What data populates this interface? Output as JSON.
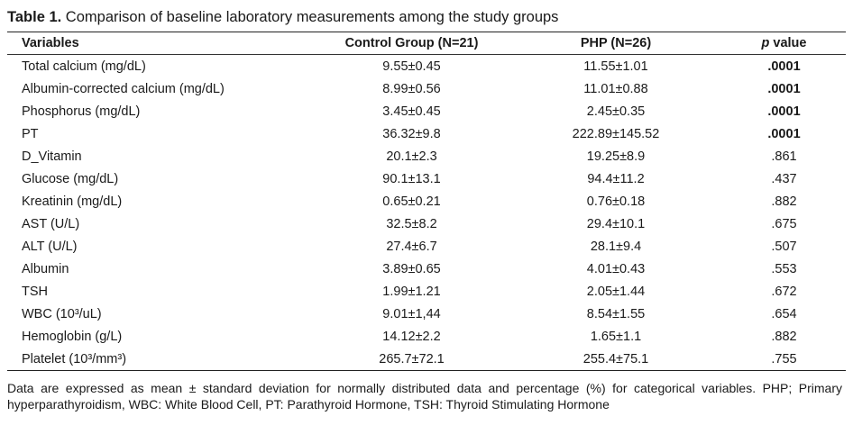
{
  "caption": {
    "lead": "Table 1.",
    "text": " Comparison of baseline laboratory measurements among the study groups"
  },
  "table": {
    "headers": {
      "variables": "Variables",
      "control": "Control Group (N=21)",
      "php": "PHP (N=26)",
      "p_italic": "p",
      "p_rest": " value"
    },
    "rows": [
      {
        "variable": "Total calcium (mg/dL)",
        "control": "9.55±0.45",
        "php": "11.55±1.01",
        "p": ".0001",
        "significant": true
      },
      {
        "variable": "Albumin-corrected calcium (mg/dL)",
        "control": "8.99±0.56",
        "php": "11.01±0.88",
        "p": ".0001",
        "significant": true
      },
      {
        "variable": "Phosphorus (mg/dL)",
        "control": "3.45±0.45",
        "php": "2.45±0.35",
        "p": ".0001",
        "significant": true
      },
      {
        "variable": "PT",
        "control": "36.32±9.8",
        "php": "222.89±145.52",
        "p": ".0001",
        "significant": true
      },
      {
        "variable": "D_Vitamin",
        "control": "20.1±2.3",
        "php": "19.25±8.9",
        "p": ".861",
        "significant": false
      },
      {
        "variable": "Glucose (mg/dL)",
        "control": "90.1±13.1",
        "php": "94.4±11.2",
        "p": ".437",
        "significant": false
      },
      {
        "variable": "Kreatinin (mg/dL)",
        "control": "0.65±0.21",
        "php": "0.76±0.18",
        "p": ".882",
        "significant": false
      },
      {
        "variable": "AST (U/L)",
        "control": "32.5±8.2",
        "php": "29.4±10.1",
        "p": ".675",
        "significant": false
      },
      {
        "variable": "ALT (U/L)",
        "control": "27.4±6.7",
        "php": "28.1±9.4",
        "p": ".507",
        "significant": false
      },
      {
        "variable": "Albumin",
        "control": "3.89±0.65",
        "php": "4.01±0.43",
        "p": ".553",
        "significant": false
      },
      {
        "variable": "TSH",
        "control": "1.99±1.21",
        "php": "2.05±1.44",
        "p": ".672",
        "significant": false
      },
      {
        "variable": "WBC (10³/uL)",
        "control": "9.01±1,44",
        "php": "8.54±1.55",
        "p": ".654",
        "significant": false
      },
      {
        "variable": "Hemoglobin (g/L)",
        "control": "14.12±2.2",
        "php": "1.65±1.1",
        "p": ".882",
        "significant": false
      },
      {
        "variable": "Platelet (10³/mm³)",
        "control": "265.7±72.1",
        "php": "255.4±75.1",
        "p": ".755",
        "significant": false
      }
    ]
  },
  "footnote": "Data are expressed as mean ± standard deviation for normally distributed data and percentage (%) for categorical variables. PHP; Primary hyperparathyroidism, WBC: White Blood Cell, PT: Parathyroid Hormone, TSH: Thyroid Stimulating Hormone"
}
